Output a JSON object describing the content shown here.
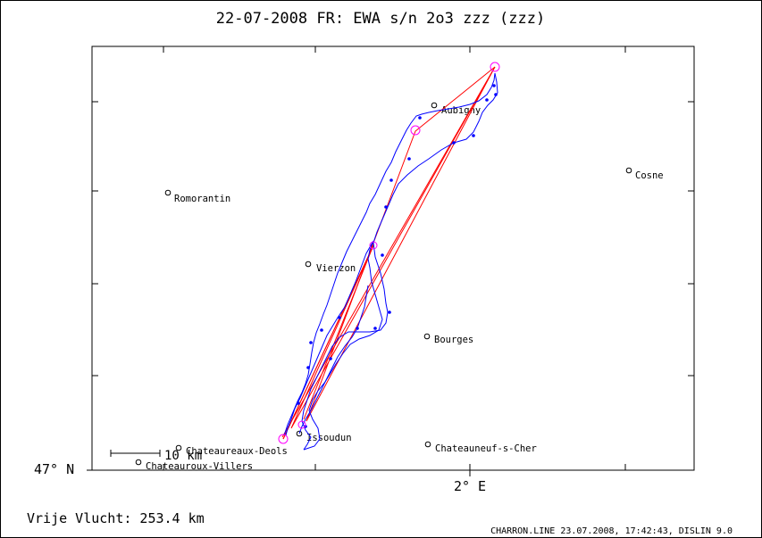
{
  "header": {
    "title": "22-07-2008   FR: EWA s/n 2o3   zzz (zzz)"
  },
  "axes": {
    "lat_label": "47° N",
    "lon_label": "2° E"
  },
  "scale_bar": {
    "label": "10 km"
  },
  "footer": {
    "distance": "Vrije Vlucht:  253.4 km",
    "credits": "CHARRON.LINE 23.07.2008, 17:42:43, DISLIN 9.0"
  },
  "places": [
    {
      "name": "Aubigny",
      "lon": 2.43,
      "lat": 47.49
    },
    {
      "name": "Cosne",
      "lon": 2.92,
      "lat": 47.41
    },
    {
      "name": "Romorantin",
      "lon": 1.74,
      "lat": 47.36
    },
    {
      "name": "Vierzon",
      "lon": 2.07,
      "lat": 47.22
    },
    {
      "name": "Bourges",
      "lon": 2.4,
      "lat": 47.08
    },
    {
      "name": "Issoudun",
      "lon": 2.0,
      "lat": 46.95
    },
    {
      "name": "Chateaureaux-Deols",
      "lon": 1.73,
      "lat": 46.84
    },
    {
      "name": "Chateauneuf-s-Cher",
      "lon": 2.22,
      "lat": 46.86
    },
    {
      "name": "Chateauroux-Villers",
      "lon": 1.65,
      "lat": 46.81
    }
  ],
  "colors": {
    "track": "#0000ff",
    "route": "#ff0000",
    "turnpoint": "#ff00ff"
  }
}
